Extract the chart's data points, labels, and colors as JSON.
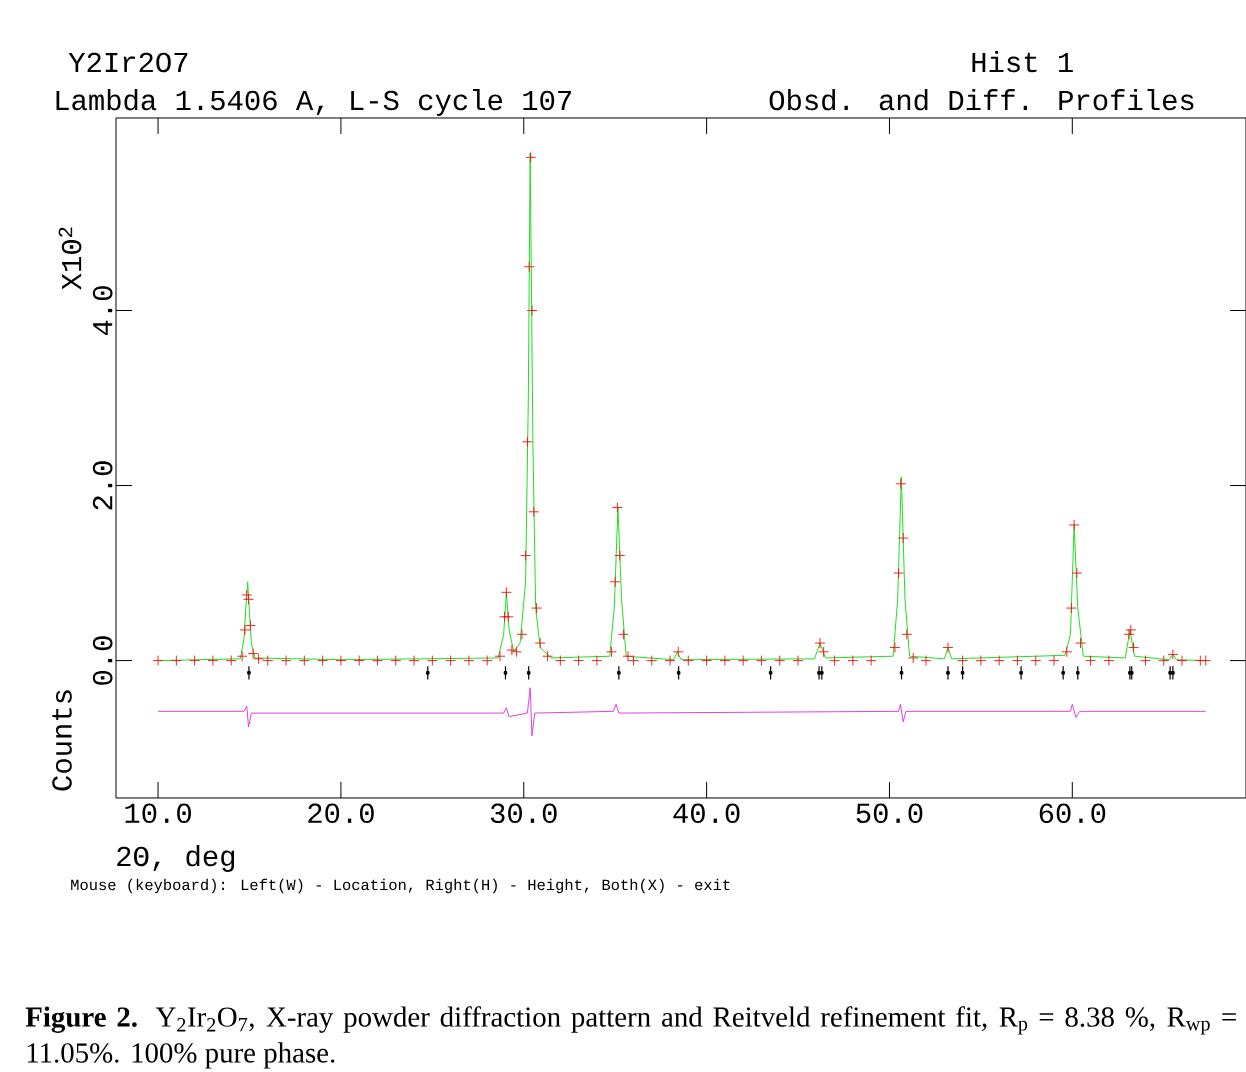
{
  "chart_data": {
    "type": "line",
    "title": "Y2Ir2O7",
    "subtitle": "Lambda 1.5406 A, L-S cycle 107",
    "xlabel": "2Θ, deg",
    "ylabel": "Counts",
    "annotations": [
      "Hist 1",
      "Obsd. and Diff. Profiles",
      "X10$^{2}$",
      "Mouse (keyboard): Left(W) - Location, Right(H) - Height, Both(X) - exit",
      "**Figure 2.** Y$_{2}$Ir$_{2}$O$_{7}$, X-ray powder diffraction pattern and Reitveld refinement fit, R$_{p}$ = 8.38 %, R$_{wp}$ = 11.05%. 100% pure phase."
    ],
    "xlim": [
      7.7,
      69.5
    ],
    "ylim": [
      -1.57,
      6.2
    ],
    "xticks": [
      {
        "value": 10,
        "label": "10.0"
      },
      {
        "value": 20,
        "label": "20.0"
      },
      {
        "value": 30,
        "label": "30.0"
      },
      {
        "value": 40,
        "label": "40.0"
      },
      {
        "value": 50,
        "label": "50.0"
      },
      {
        "value": 60,
        "label": "60.0"
      }
    ],
    "yticks": [
      {
        "value": 0,
        "label": "0.0"
      },
      {
        "value": 2,
        "label": "2.0"
      },
      {
        "value": 4,
        "label": "4.0"
      }
    ],
    "grid": false,
    "series": [
      {
        "type": "scatter",
        "marker": "cross",
        "color": "#ee1111",
        "x": [
          10,
          11,
          12,
          13,
          14,
          14.6,
          14.75,
          14.85,
          14.95,
          15.05,
          15.2,
          15.5,
          16,
          17,
          18,
          19,
          20,
          21,
          22,
          23,
          24,
          25,
          26,
          27,
          28,
          28.7,
          28.95,
          29.05,
          29.15,
          29.35,
          29.6,
          29.9,
          30.1,
          30.2,
          30.3,
          30.38,
          30.45,
          30.55,
          30.7,
          30.9,
          31.3,
          32,
          33,
          34,
          34.8,
          35.0,
          35.12,
          35.25,
          35.45,
          35.7,
          36,
          37,
          38,
          38.45,
          39,
          40,
          41,
          42,
          43,
          44,
          45,
          46.2,
          46.4,
          47,
          48,
          49,
          50.3,
          50.5,
          50.62,
          50.75,
          50.95,
          51.3,
          52,
          53.2,
          54,
          55,
          56,
          57,
          58,
          59,
          59.7,
          59.95,
          60.1,
          60.25,
          60.45,
          61,
          62,
          63.1,
          63.2,
          63.35,
          64,
          65,
          65.5,
          66,
          67,
          67.3
        ],
        "values": [
          0,
          0,
          0,
          0,
          0,
          0.05,
          0.35,
          0.75,
          0.7,
          0.4,
          0.08,
          0.02,
          0,
          0,
          0,
          0,
          0,
          0,
          0,
          0,
          0,
          0,
          0,
          0,
          0,
          0.05,
          0.5,
          0.78,
          0.5,
          0.12,
          0.1,
          0.3,
          1.2,
          2.5,
          4.5,
          5.75,
          4.0,
          1.7,
          0.6,
          0.2,
          0.05,
          0,
          0,
          0,
          0.1,
          0.9,
          1.75,
          1.2,
          0.3,
          0.05,
          0,
          0,
          0,
          0.1,
          0,
          0,
          0,
          0,
          0,
          0,
          0,
          0.2,
          0.1,
          0,
          0,
          0,
          0.15,
          1.0,
          2.02,
          1.4,
          0.3,
          0.03,
          0,
          0.15,
          0,
          0,
          0,
          0,
          0,
          0,
          0.1,
          0.6,
          1.55,
          1.0,
          0.2,
          0,
          0,
          0.3,
          0.35,
          0.15,
          0,
          0,
          0.07,
          0,
          0,
          0
        ]
      },
      {
        "color": "#22dd22",
        "x": [
          10,
          14.5,
          14.7,
          14.8,
          14.9,
          15.0,
          15.1,
          15.3,
          20,
          28.6,
          28.9,
          29.05,
          29.2,
          29.45,
          29.8,
          30.1,
          30.25,
          30.35,
          30.5,
          30.65,
          30.9,
          31.5,
          34.7,
          34.95,
          35.15,
          35.35,
          35.6,
          38.2,
          38.4,
          38.6,
          45.9,
          46.2,
          46.5,
          50.2,
          50.45,
          50.65,
          50.85,
          51.1,
          53.0,
          53.2,
          53.4,
          59.6,
          59.9,
          60.1,
          60.3,
          60.6,
          62.9,
          63.15,
          63.4,
          65.3,
          65.5,
          65.7,
          67.3
        ],
        "values": [
          0,
          0.02,
          0.25,
          0.6,
          0.9,
          0.55,
          0.2,
          0.03,
          0.01,
          0.03,
          0.3,
          0.78,
          0.35,
          0.1,
          0.2,
          0.9,
          3.0,
          5.8,
          2.5,
          0.6,
          0.15,
          0.03,
          0.05,
          0.6,
          1.75,
          0.7,
          0.05,
          0.01,
          0.1,
          0.01,
          0.02,
          0.2,
          0.03,
          0.05,
          0.7,
          2.1,
          0.7,
          0.05,
          0.02,
          0.15,
          0.02,
          0.06,
          0.3,
          1.55,
          0.6,
          0.05,
          0.03,
          0.35,
          0.05,
          0.01,
          0.07,
          0.01,
          0
        ]
      },
      {
        "color": "#e040e0",
        "x": [
          10,
          14.7,
          14.85,
          14.95,
          15.1,
          28.9,
          29.05,
          29.2,
          30.2,
          30.35,
          30.45,
          30.6,
          34.9,
          35.05,
          35.2,
          50.5,
          50.6,
          50.75,
          50.9,
          59.9,
          60.0,
          60.2,
          60.4,
          67.3
        ],
        "values": [
          -0.58,
          -0.58,
          -0.52,
          -0.76,
          -0.6,
          -0.6,
          -0.54,
          -0.64,
          -0.6,
          -0.31,
          -0.86,
          -0.6,
          -0.58,
          -0.5,
          -0.6,
          -0.58,
          -0.5,
          -0.7,
          -0.58,
          -0.58,
          -0.5,
          -0.65,
          -0.58,
          -0.58
        ]
      },
      {
        "type": "scatter",
        "marker": "square",
        "color": "#000000",
        "x": [
          14.97,
          24.75,
          29.0,
          30.27,
          35.2,
          38.47,
          43.5,
          46.15,
          46.3,
          50.66,
          53.2,
          54.0,
          57.2,
          59.5,
          60.3,
          63.15,
          63.25,
          65.35,
          65.5
        ],
        "values": [
          -0.14,
          -0.14,
          -0.14,
          -0.14,
          -0.14,
          -0.14,
          -0.14,
          -0.14,
          -0.14,
          -0.14,
          -0.14,
          -0.14,
          -0.14,
          -0.14,
          -0.14,
          -0.14,
          -0.14,
          -0.14,
          -0.14
        ],
        "errors": [
          0.075,
          0.075,
          0.075,
          0.075,
          0.075,
          0.075,
          0.075,
          0.075,
          0.075,
          0.075,
          0.075,
          0.075,
          0.075,
          0.075,
          0.075,
          0.075,
          0.075,
          0.075,
          0.075
        ]
      }
    ]
  }
}
